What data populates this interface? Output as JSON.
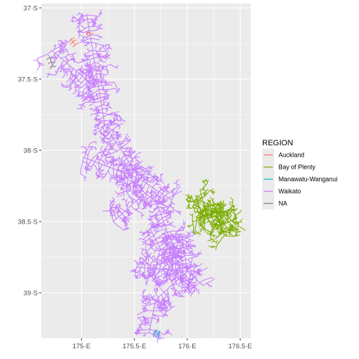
{
  "chart_data": {
    "type": "map",
    "xlim": [
      174.62,
      176.6
    ],
    "ylim": [
      -39.32,
      -36.97
    ],
    "x_ticks": [
      {
        "value": 175.0,
        "label": "175·E"
      },
      {
        "value": 175.5,
        "label": "175.5·E"
      },
      {
        "value": 176.0,
        "label": "176·E"
      },
      {
        "value": 176.5,
        "label": "176.5·E"
      }
    ],
    "y_ticks": [
      {
        "value": -37.0,
        "label": "37·S"
      },
      {
        "value": -37.5,
        "label": "37.5·S"
      },
      {
        "value": -38.0,
        "label": "38·S"
      },
      {
        "value": -38.5,
        "label": "38.5·S"
      },
      {
        "value": -39.0,
        "label": "39·S"
      }
    ],
    "grid": true,
    "legend": {
      "title": "REGION",
      "position": "right",
      "entries": [
        {
          "name": "Auckland",
          "color": "#F8766D"
        },
        {
          "name": "Bay of Plenty",
          "color": "#7CAE00"
        },
        {
          "name": "Manawatu-Wanganui",
          "color": "#00BFC4"
        },
        {
          "name": "Waikato",
          "color": "#C77CFF"
        },
        {
          "name": "NA",
          "color": "#7F7F7F"
        }
      ]
    },
    "panel_background": "#EBEBEB",
    "grid_color": "#FFFFFF",
    "network_regions": [
      {
        "region": "Waikato",
        "color": "#C77CFF",
        "trunks": [
          {
            "from": [
              175.05,
              -37.05
            ],
            "to": [
              175.22,
              -37.82
            ]
          },
          {
            "from": [
              174.72,
              -37.3
            ],
            "to": [
              175.12,
              -37.55
            ]
          },
          {
            "from": [
              175.2,
              -37.8
            ],
            "to": [
              175.55,
              -38.2
            ]
          },
          {
            "from": [
              175.02,
              -38.05
            ],
            "to": [
              175.55,
              -38.2
            ]
          },
          {
            "from": [
              175.55,
              -38.2
            ],
            "to": [
              175.85,
              -38.35
            ]
          },
          {
            "from": [
              175.3,
              -38.5
            ],
            "to": [
              175.6,
              -38.3
            ]
          },
          {
            "from": [
              175.7,
              -38.35
            ],
            "to": [
              175.9,
              -38.75
            ]
          },
          {
            "from": [
              175.65,
              -38.55
            ],
            "to": [
              175.85,
              -38.85
            ]
          },
          {
            "from": [
              175.52,
              -38.82
            ],
            "to": [
              176.0,
              -38.85
            ]
          },
          {
            "from": [
              176.0,
              -38.85
            ],
            "to": [
              175.7,
              -39.05
            ]
          },
          {
            "from": [
              175.7,
              -39.05
            ],
            "to": [
              175.64,
              -39.28
            ]
          },
          {
            "from": [
              175.95,
              -38.6
            ],
            "to": [
              176.0,
              -38.85
            ]
          },
          {
            "from": [
              176.0,
              -38.85
            ],
            "to": [
              176.15,
              -38.95
            ]
          }
        ]
      },
      {
        "region": "Bay of Plenty",
        "color": "#7CAE00",
        "trunks": [
          {
            "from": [
              176.12,
              -38.28
            ],
            "to": [
              176.2,
              -38.5
            ]
          },
          {
            "from": [
              176.05,
              -38.5
            ],
            "to": [
              176.38,
              -38.45
            ]
          },
          {
            "from": [
              176.25,
              -38.38
            ],
            "to": [
              176.35,
              -38.6
            ]
          },
          {
            "from": [
              176.28,
              -38.55
            ],
            "to": [
              176.45,
              -38.48
            ]
          }
        ]
      },
      {
        "region": "Auckland",
        "color": "#F8766D",
        "trunks": [
          {
            "from": [
              174.9,
              -37.22
            ],
            "to": [
              174.94,
              -37.26
            ]
          },
          {
            "from": [
              175.06,
              -37.17
            ],
            "to": [
              175.08,
              -37.19
            ]
          }
        ]
      },
      {
        "region": "NA",
        "color": "#7F7F7F",
        "trunks": [
          {
            "from": [
              174.7,
              -37.35
            ],
            "to": [
              174.73,
              -37.41
            ]
          }
        ]
      },
      {
        "region": "Manawatu-Wanganui",
        "color": "#00BFC4",
        "trunks": [
          {
            "from": [
              175.69,
              -39.28
            ],
            "to": [
              175.73,
              -39.29
            ]
          }
        ]
      }
    ]
  }
}
